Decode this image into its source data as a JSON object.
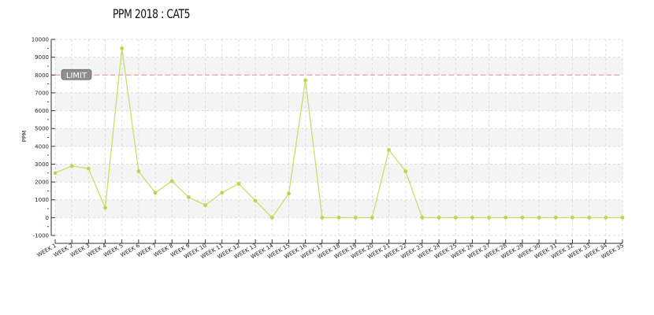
{
  "chart_data": {
    "type": "line",
    "title": "PPM 2018 : CAT5",
    "ylabel": "PPM",
    "xlabel": "",
    "ylim": [
      -1000,
      10000
    ],
    "y_ticks": [
      -1000,
      0,
      1000,
      2000,
      3000,
      4000,
      5000,
      6000,
      7000,
      8000,
      9000,
      10000
    ],
    "categories": [
      "WEEK 1",
      "WEEK 2",
      "WEEK 3",
      "WEEK 4",
      "WEEK 5",
      "WEEK 6",
      "WEEK 7",
      "WEEK 8",
      "WEEK 9",
      "WEEK 10",
      "WEEK 11",
      "WEEK 12",
      "WEEK 13",
      "WEEK 14",
      "WEEK 15",
      "WEEK 16",
      "WEEK 17",
      "WEEK 18",
      "WEEK 19",
      "WEEK 20",
      "WEEK 21",
      "WEEK 22",
      "WEEK 23",
      "WEEK 24",
      "WEEK 25",
      "WEEK 26",
      "WEEK 27",
      "WEEK 28",
      "WEEK 29",
      "WEEK 30",
      "WEEK 31",
      "WEEK 32",
      "WEEK 33",
      "WEEK 34",
      "WEEK 35"
    ],
    "series": [
      {
        "values": [
          2500,
          2900,
          2750,
          550,
          9500,
          2600,
          1400,
          2050,
          1150,
          700,
          1400,
          1900,
          950,
          0,
          1350,
          7700,
          0,
          0,
          0,
          0,
          3800,
          2600,
          0,
          0,
          0,
          0,
          0,
          0,
          0,
          0,
          0,
          0,
          0,
          0,
          0
        ]
      }
    ],
    "limit": {
      "label": "LIMIT",
      "value": 8000
    },
    "grid": true,
    "colors": {
      "line": "#c5e06b",
      "marker": "#b8d848",
      "limit": "#e8a0a8",
      "band": "#f4f4f4"
    }
  }
}
